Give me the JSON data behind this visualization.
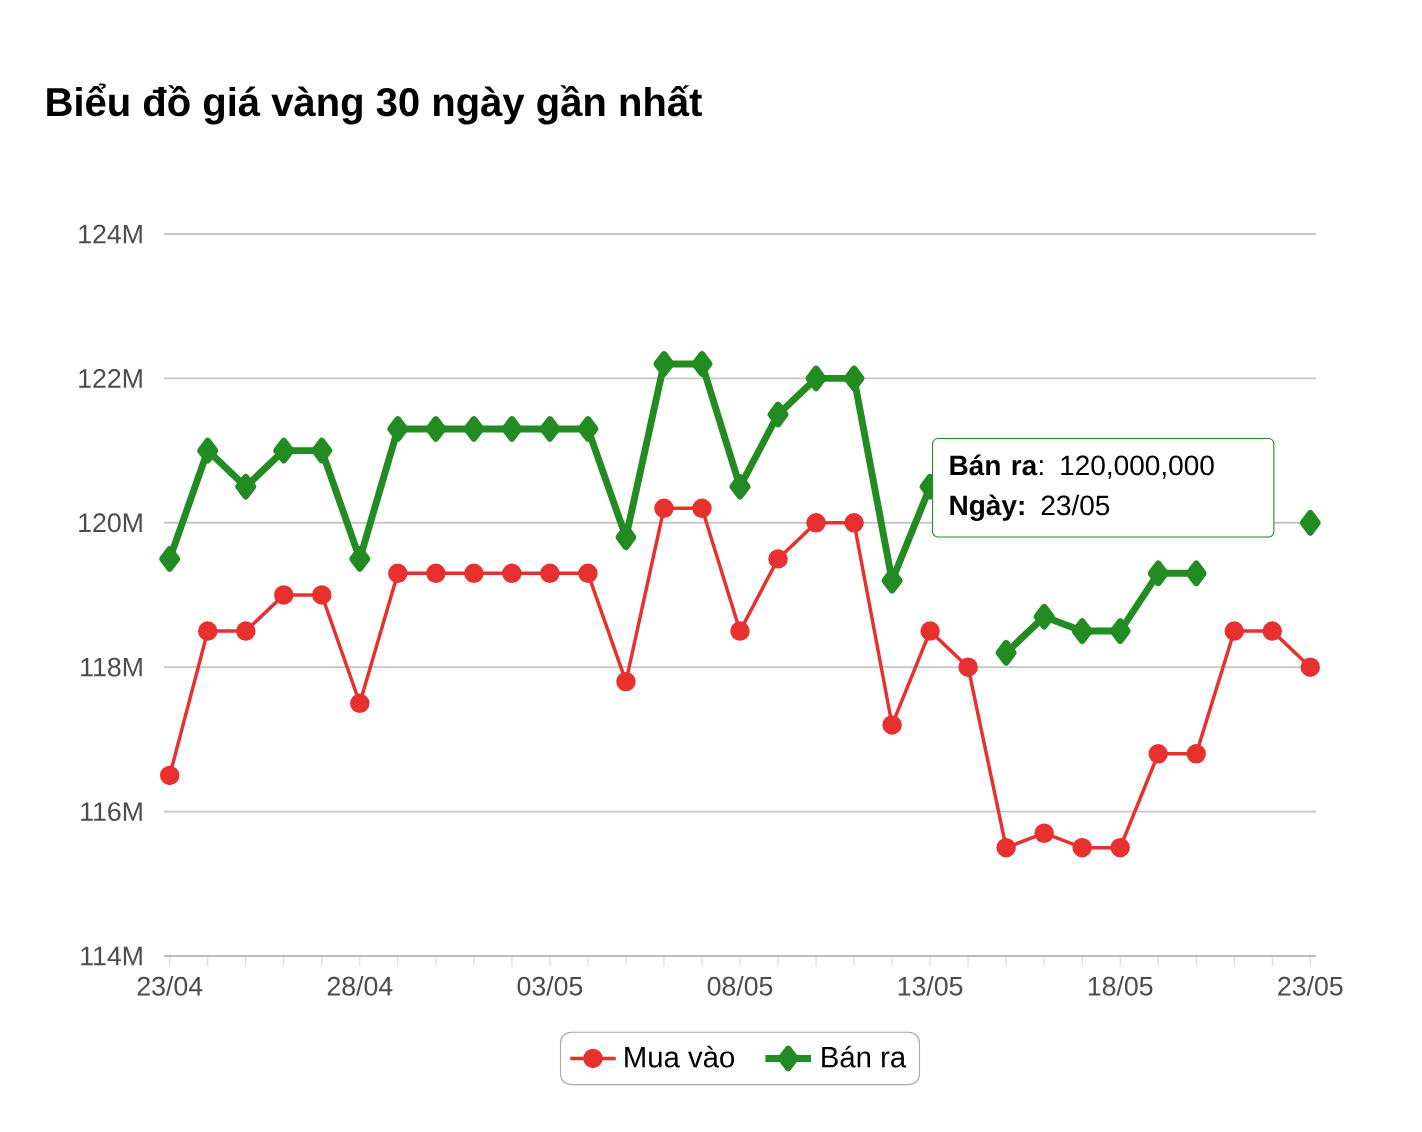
{
  "chart_data": {
    "type": "line",
    "title": "Biểu đồ giá vàng 30 ngày gần nhất",
    "categories": [
      "23/04",
      null,
      null,
      null,
      null,
      "28/04",
      null,
      null,
      null,
      null,
      "03/05",
      null,
      null,
      null,
      null,
      "08/05",
      null,
      null,
      null,
      null,
      "13/05",
      null,
      null,
      null,
      null,
      "18/05",
      null,
      null,
      null,
      null,
      "23/05"
    ],
    "series": [
      {
        "name": "Mua vào",
        "color": "#e8302e",
        "marker": "circle",
        "values": [
          116.5,
          118.5,
          118.5,
          119,
          119,
          117.5,
          119.3,
          119.3,
          119.3,
          119.3,
          119.3,
          119.3,
          117.8,
          120.2,
          120.2,
          118.5,
          119.5,
          120,
          120,
          117.2,
          118.5,
          118,
          115.5,
          115.7,
          115.5,
          115.5,
          116.8,
          116.8,
          118.5,
          118.5,
          118
        ]
      },
      {
        "name": "Bán ra",
        "color": "#228b22",
        "marker": "diamond",
        "values": [
          119.5,
          121,
          120.5,
          121,
          121,
          119.5,
          121.3,
          121.3,
          121.3,
          121.3,
          121.3,
          121.3,
          119.8,
          122.2,
          122.2,
          120.5,
          121.5,
          122,
          122,
          119.2,
          120.5,
          null,
          118.2,
          118.7,
          118.5,
          118.5,
          119.3,
          119.3,
          null,
          null,
          120
        ]
      }
    ],
    "ylim": [
      114,
      124
    ],
    "yticks": [
      {
        "value": 114,
        "label": "114M"
      },
      {
        "value": 116,
        "label": "116M"
      },
      {
        "value": 118,
        "label": "118M"
      },
      {
        "value": 120,
        "label": "120M"
      },
      {
        "value": 122,
        "label": "122M"
      },
      {
        "value": 124,
        "label": "124M"
      }
    ],
    "grid": "y",
    "legend": "bottom",
    "line_style": "solid",
    "annotations": [
      "**Bán ra**: 120,000,000",
      "**Ngày:** 23/05"
    ]
  }
}
